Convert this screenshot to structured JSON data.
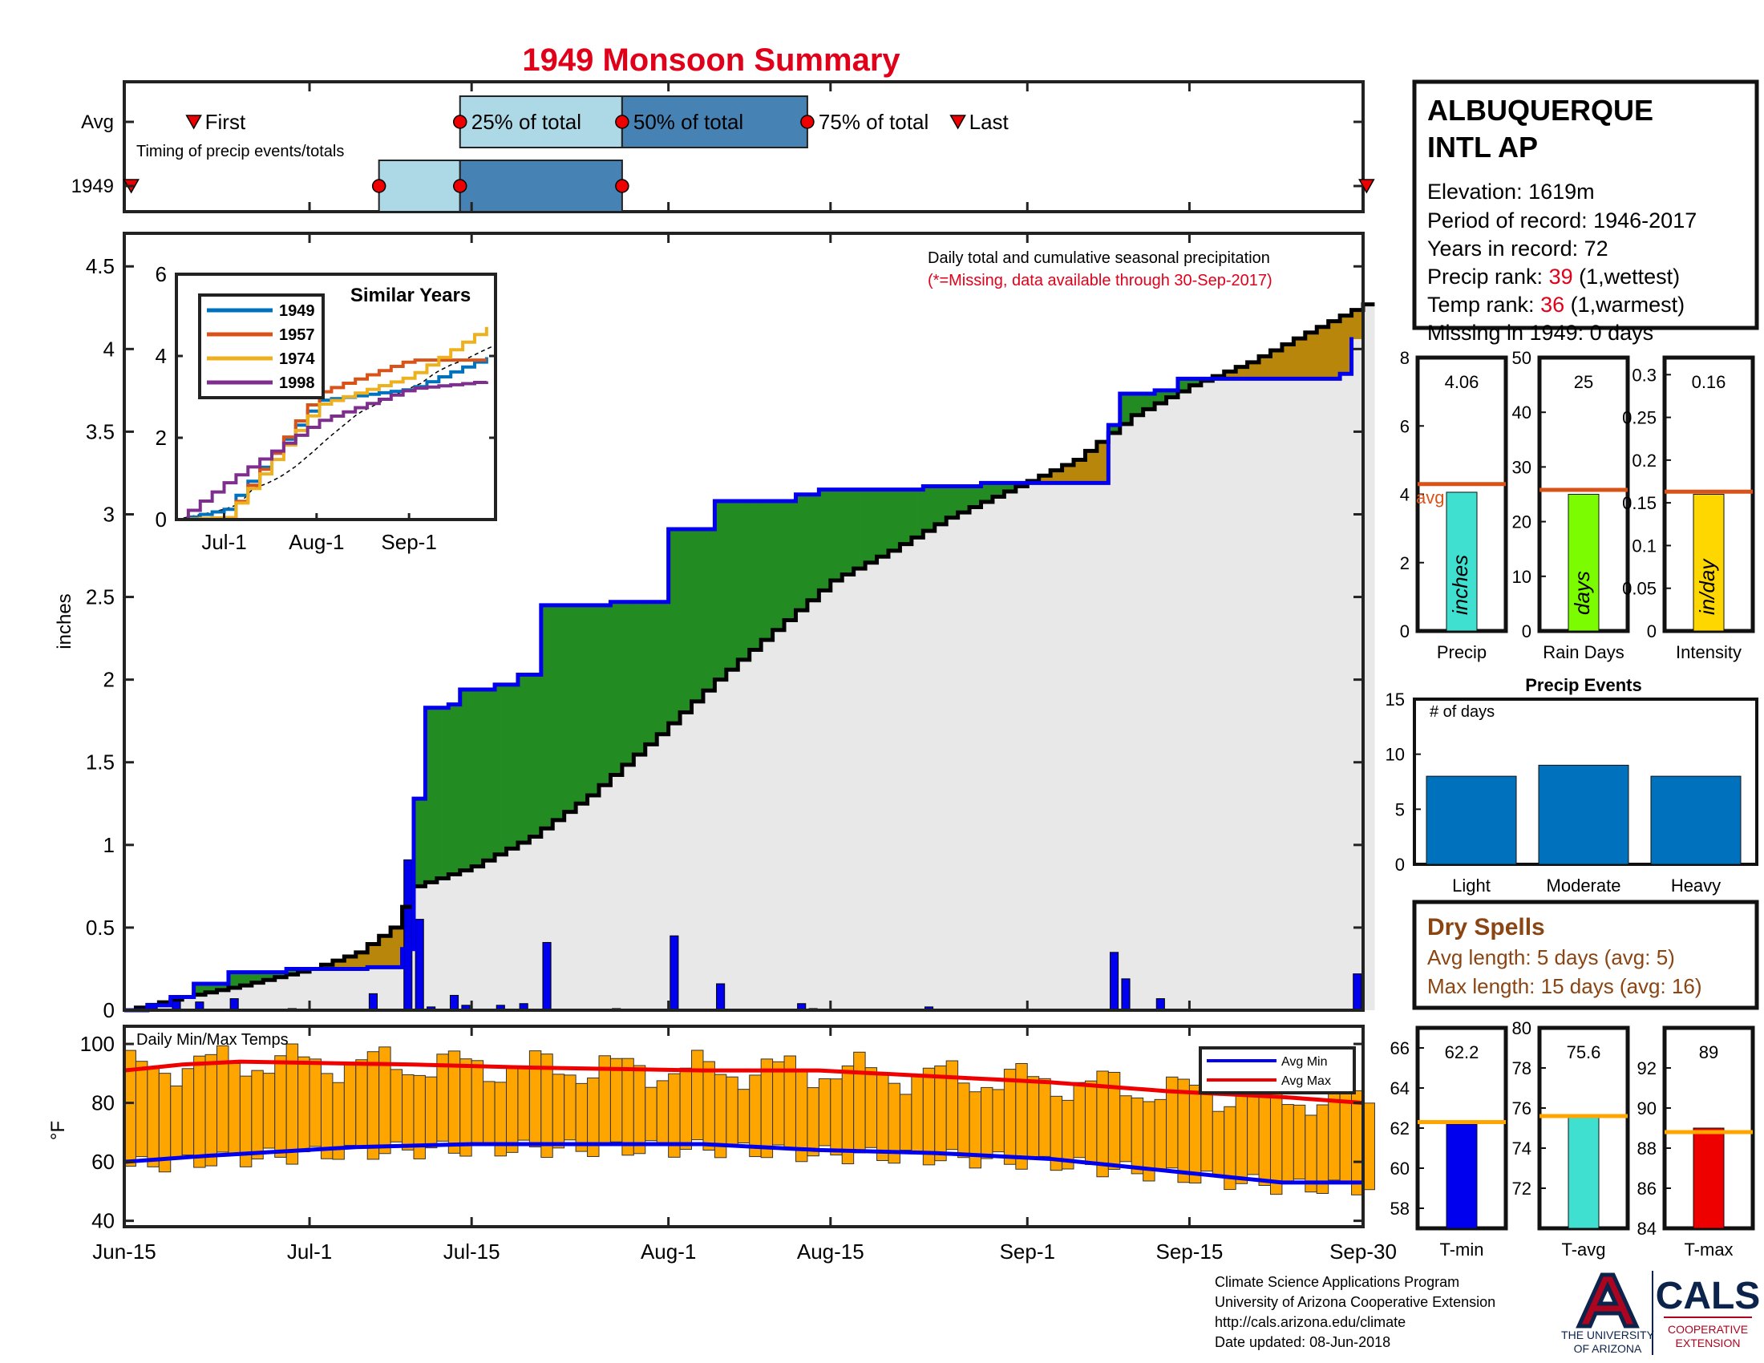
{
  "title": "1949 Monsoon Summary",
  "colors": {
    "title": "#e0001a",
    "cumulative_1949": "#0000ee",
    "above_avg_fill": "#228b22",
    "below_avg_fill": "#b8860b",
    "climo_fill": "#e8e8e8",
    "daily_bar": "#0000ee",
    "temp_bar": "#ffa500",
    "avg_min": "#0000ee",
    "avg_max": "#ee0000",
    "brown_text": "#8b4513",
    "rank_red": "#e0001a"
  },
  "timing": {
    "rows": [
      "Avg",
      "1949"
    ],
    "caption": "Timing of precip events/totals",
    "first_label": "First",
    "last_label": "Last",
    "p25_label": "25% of total",
    "p50_label": "50% of total",
    "p75_label": "75% of total",
    "avg": {
      "first": 6,
      "p25": 29,
      "p50": 43,
      "p75": 59,
      "last": 72
    },
    "y1949": {
      "first": 0,
      "p25": 22,
      "p50": 29,
      "p75": 43,
      "last": 78
    }
  },
  "station": {
    "name_line1": "ALBUQUERQUE",
    "name_line2": "INTL AP",
    "elevation": "Elevation: 1619m",
    "period": "Period of record: 1946-2017",
    "years": "Years in record: 72",
    "precip_rank_label": "Precip rank: ",
    "precip_rank_value": "39",
    "precip_rank_note": " (1,wettest)",
    "temp_rank_label": "Temp rank: ",
    "temp_rank_value": "36",
    "temp_rank_note": " (1,warmest)",
    "missing": "Missing in 1949: 0 days"
  },
  "main_chart": {
    "caption1": "Daily total and cumulative seasonal precipitation",
    "caption2": "(*=Missing, data available through 30-Sep-2017)",
    "ylabel": "inches",
    "y_ticks": [
      "0",
      "0.5",
      "1",
      "1.5",
      "2",
      "2.5",
      "3",
      "3.5",
      "4",
      "4.5"
    ],
    "x_tick_labels": [
      "Jun-15",
      "Jul-1",
      "Jul-15",
      "Aug-1",
      "Aug-15",
      "Sep-1",
      "Sep-15",
      "Sep-30"
    ]
  },
  "inset": {
    "title": "Similar Years",
    "y_ticks": [
      "0",
      "2",
      "4",
      "6"
    ],
    "x_ticks": [
      "Jul-1",
      "Aug-1",
      "Sep-1"
    ],
    "legend": [
      "1949",
      "1957",
      "1974",
      "1998"
    ],
    "legend_colors": [
      "#0072bd",
      "#d95319",
      "#edb120",
      "#7e2f8e"
    ]
  },
  "temp_chart": {
    "title": "Daily Min/Max Temps",
    "ylabel": "°F",
    "y_ticks": [
      "40",
      "60",
      "80",
      "100"
    ],
    "legend": [
      "Avg Min",
      "Avg Max"
    ]
  },
  "mini_precip": [
    {
      "label": "Precip",
      "value_text": "4.06",
      "unit": "inches",
      "value": 4.06,
      "avg": 4.3,
      "ymax": 8,
      "ticks": [
        "0",
        "2",
        "4",
        "6",
        "8"
      ],
      "color": "#40e0d0",
      "avg_label": "avg"
    },
    {
      "label": "Rain Days",
      "value_text": "25",
      "unit": "days",
      "value": 25,
      "avg": 25.8,
      "ymax": 50,
      "ticks": [
        "0",
        "10",
        "20",
        "30",
        "40",
        "50"
      ],
      "color": "#7cfc00"
    },
    {
      "label": "Intensity",
      "value_text": "0.16",
      "unit": "in/day",
      "value": 0.16,
      "avg": 0.163,
      "ymax": 0.32,
      "ticks": [
        "0",
        "0.05",
        "0.1",
        "0.15",
        "0.2",
        "0.25",
        "0.3"
      ],
      "color": "#ffd700"
    }
  ],
  "precip_events": {
    "title": "Precip Events",
    "ylabel": "# of days",
    "y_ticks": [
      "0",
      "5",
      "10",
      "15"
    ],
    "categories": [
      "Light",
      "Moderate",
      "Heavy"
    ],
    "values": [
      8,
      9,
      8
    ]
  },
  "dry_spells": {
    "title": "Dry Spells",
    "avg_line": "Avg length: 5 days (avg: 5)",
    "max_line": "Max length: 15 days (avg: 16)"
  },
  "mini_temps": [
    {
      "label": "T-min",
      "value_text": "62.2",
      "value": 62.2,
      "avg": 62.3,
      "ymin": 57,
      "ymax": 67,
      "ticks": [
        "58",
        "60",
        "62",
        "64",
        "66"
      ],
      "color": "#0000ee"
    },
    {
      "label": "T-avg",
      "value_text": "75.6",
      "value": 75.6,
      "avg": 75.6,
      "ymin": 70,
      "ymax": 80,
      "ticks": [
        "72",
        "74",
        "76",
        "78",
        "80"
      ],
      "color": "#40e0d0"
    },
    {
      "label": "T-max",
      "value_text": "89",
      "value": 89,
      "avg": 88.8,
      "ymin": 84,
      "ymax": 94,
      "ticks": [
        "84",
        "86",
        "88",
        "90",
        "92"
      ],
      "color": "#ee0000"
    }
  ],
  "footer": {
    "line1": "Climate Science Applications Program",
    "line2": "University of Arizona Cooperative Extension",
    "line3": "http://cals.arizona.edu/climate",
    "line4": " Date updated: 08-Jun-2018",
    "ua_line1": "THE UNIVERSITY",
    "ua_line2": "OF ARIZONA",
    "cals": "CALS",
    "coop1": "COOPERATIVE",
    "coop2": "EXTENSION"
  },
  "chart_data": [
    {
      "type": "area",
      "title": "Daily total and cumulative seasonal precipitation",
      "ylabel": "inches",
      "ylim": [
        0,
        4.7
      ],
      "x_label_dates": [
        "Jun-15",
        "Jul-1",
        "Jul-15",
        "Aug-1",
        "Aug-15",
        "Sep-1",
        "Sep-15",
        "Sep-30"
      ],
      "series": [
        {
          "name": "1949 cumulative",
          "points": [
            [
              "Jun-15",
              0.0
            ],
            [
              "Jun-17",
              0.03
            ],
            [
              "Jun-19",
              0.08
            ],
            [
              "Jun-21",
              0.16
            ],
            [
              "Jun-24",
              0.23
            ],
            [
              "Jun-29",
              0.25
            ],
            [
              "Jul-6",
              0.26
            ],
            [
              "Jul-9",
              0.37
            ],
            [
              "Jul-10",
              1.28
            ],
            [
              "Jul-11",
              1.83
            ],
            [
              "Jul-13",
              1.85
            ],
            [
              "Jul-14",
              1.94
            ],
            [
              "Jul-17",
              1.97
            ],
            [
              "Jul-19",
              2.03
            ],
            [
              "Jul-21",
              2.45
            ],
            [
              "Jul-27",
              2.47
            ],
            [
              "Aug-1",
              2.91
            ],
            [
              "Aug-5",
              3.08
            ],
            [
              "Aug-12",
              3.12
            ],
            [
              "Aug-14",
              3.15
            ],
            [
              "Aug-23",
              3.17
            ],
            [
              "Aug-28",
              3.19
            ],
            [
              "Sep-8",
              3.54
            ],
            [
              "Sep-9",
              3.73
            ],
            [
              "Sep-12",
              3.75
            ],
            [
              "Sep-14",
              3.82
            ],
            [
              "Sep-28",
              3.85
            ],
            [
              "Sep-29",
              4.06
            ]
          ]
        },
        {
          "name": "average cumulative",
          "points": [
            [
              "Jun-15",
              0.0
            ],
            [
              "Jun-20",
              0.08
            ],
            [
              "Jun-25",
              0.15
            ],
            [
              "Jul-1",
              0.25
            ],
            [
              "Jul-5",
              0.35
            ],
            [
              "Jul-8",
              0.5
            ],
            [
              "Jul-10",
              0.75
            ],
            [
              "Jul-15",
              0.87
            ],
            [
              "Jul-20",
              1.05
            ],
            [
              "Jul-25",
              1.3
            ],
            [
              "Jul-31",
              1.67
            ],
            [
              "Aug-5",
              2.0
            ],
            [
              "Aug-10",
              2.3
            ],
            [
              "Aug-15",
              2.6
            ],
            [
              "Aug-20",
              2.78
            ],
            [
              "Aug-25",
              2.98
            ],
            [
              "Aug-31",
              3.17
            ],
            [
              "Sep-5",
              3.33
            ],
            [
              "Sep-10",
              3.6
            ],
            [
              "Sep-15",
              3.78
            ],
            [
              "Sep-20",
              3.92
            ],
            [
              "Sep-25",
              4.1
            ],
            [
              "Sep-30",
              4.27
            ]
          ]
        }
      ],
      "daily_precip": [
        [
          "Jun-16",
          0.02
        ],
        [
          "Jun-17",
          0.03
        ],
        [
          "Jun-19",
          0.08
        ],
        [
          "Jun-21",
          0.05
        ],
        [
          "Jun-24",
          0.07
        ],
        [
          "Jun-29",
          0.01
        ],
        [
          "Jul-6",
          0.1
        ],
        [
          "Jul-9",
          0.91
        ],
        [
          "Jul-10",
          0.55
        ],
        [
          "Jul-11",
          0.02
        ],
        [
          "Jul-13",
          0.09
        ],
        [
          "Jul-14",
          0.03
        ],
        [
          "Jul-17",
          0.03
        ],
        [
          "Jul-19",
          0.04
        ],
        [
          "Jul-21",
          0.41
        ],
        [
          "Jul-27",
          0.01
        ],
        [
          "Aug-1",
          0.45
        ],
        [
          "Aug-5",
          0.16
        ],
        [
          "Aug-12",
          0.04
        ],
        [
          "Aug-13",
          0.01
        ],
        [
          "Aug-23",
          0.02
        ],
        [
          "Sep-8",
          0.35
        ],
        [
          "Sep-9",
          0.19
        ],
        [
          "Sep-12",
          0.07
        ],
        [
          "Sep-29",
          0.22
        ]
      ]
    },
    {
      "type": "line",
      "title": "Similar Years",
      "x": [
        "Jun-15",
        "Jul-1",
        "Aug-1",
        "Sep-1",
        "Sep-30"
      ],
      "ylim": [
        0,
        6
      ],
      "series": [
        {
          "name": "1949",
          "values": [
            0.0,
            0.25,
            2.91,
            3.19,
            4.06
          ]
        },
        {
          "name": "1957",
          "values": [
            0.0,
            0.05,
            3.1,
            3.9,
            3.9
          ]
        },
        {
          "name": "1974",
          "values": [
            0.0,
            0.05,
            2.8,
            3.5,
            4.85
          ]
        },
        {
          "name": "1998",
          "values": [
            0.0,
            0.9,
            2.4,
            3.2,
            3.4
          ]
        }
      ]
    },
    {
      "type": "bar",
      "title": "Daily Min/Max Temps",
      "ylabel": "°F",
      "ylim": [
        38,
        106
      ],
      "note": "daily bars span min to max temperature, Jun-15 to Sep-30",
      "avg_min": [
        [
          0,
          60
        ],
        [
          7,
          62
        ],
        [
          20,
          65
        ],
        [
          30,
          66
        ],
        [
          50,
          66
        ],
        [
          60,
          64
        ],
        [
          70,
          63
        ],
        [
          80,
          61
        ],
        [
          90,
          57
        ],
        [
          100,
          53
        ],
        [
          107,
          53
        ]
      ],
      "avg_max": [
        [
          0,
          91
        ],
        [
          5,
          93
        ],
        [
          10,
          94
        ],
        [
          25,
          93
        ],
        [
          35,
          92
        ],
        [
          50,
          91
        ],
        [
          60,
          91
        ],
        [
          70,
          89
        ],
        [
          80,
          87
        ],
        [
          90,
          84
        ],
        [
          100,
          82
        ],
        [
          107,
          80
        ]
      ]
    },
    {
      "type": "bar",
      "title": "Precip Events",
      "categories": [
        "Light",
        "Moderate",
        "Heavy"
      ],
      "values": [
        8,
        9,
        8
      ],
      "ylabel": "# of days",
      "ylim": [
        0,
        15
      ]
    },
    {
      "type": "bar",
      "categories": [
        "Precip",
        "Rain Days",
        "Intensity"
      ],
      "values": [
        4.06,
        25,
        0.16
      ]
    },
    {
      "type": "bar",
      "categories": [
        "T-min",
        "T-avg",
        "T-max"
      ],
      "values": [
        62.2,
        75.6,
        89
      ]
    }
  ]
}
